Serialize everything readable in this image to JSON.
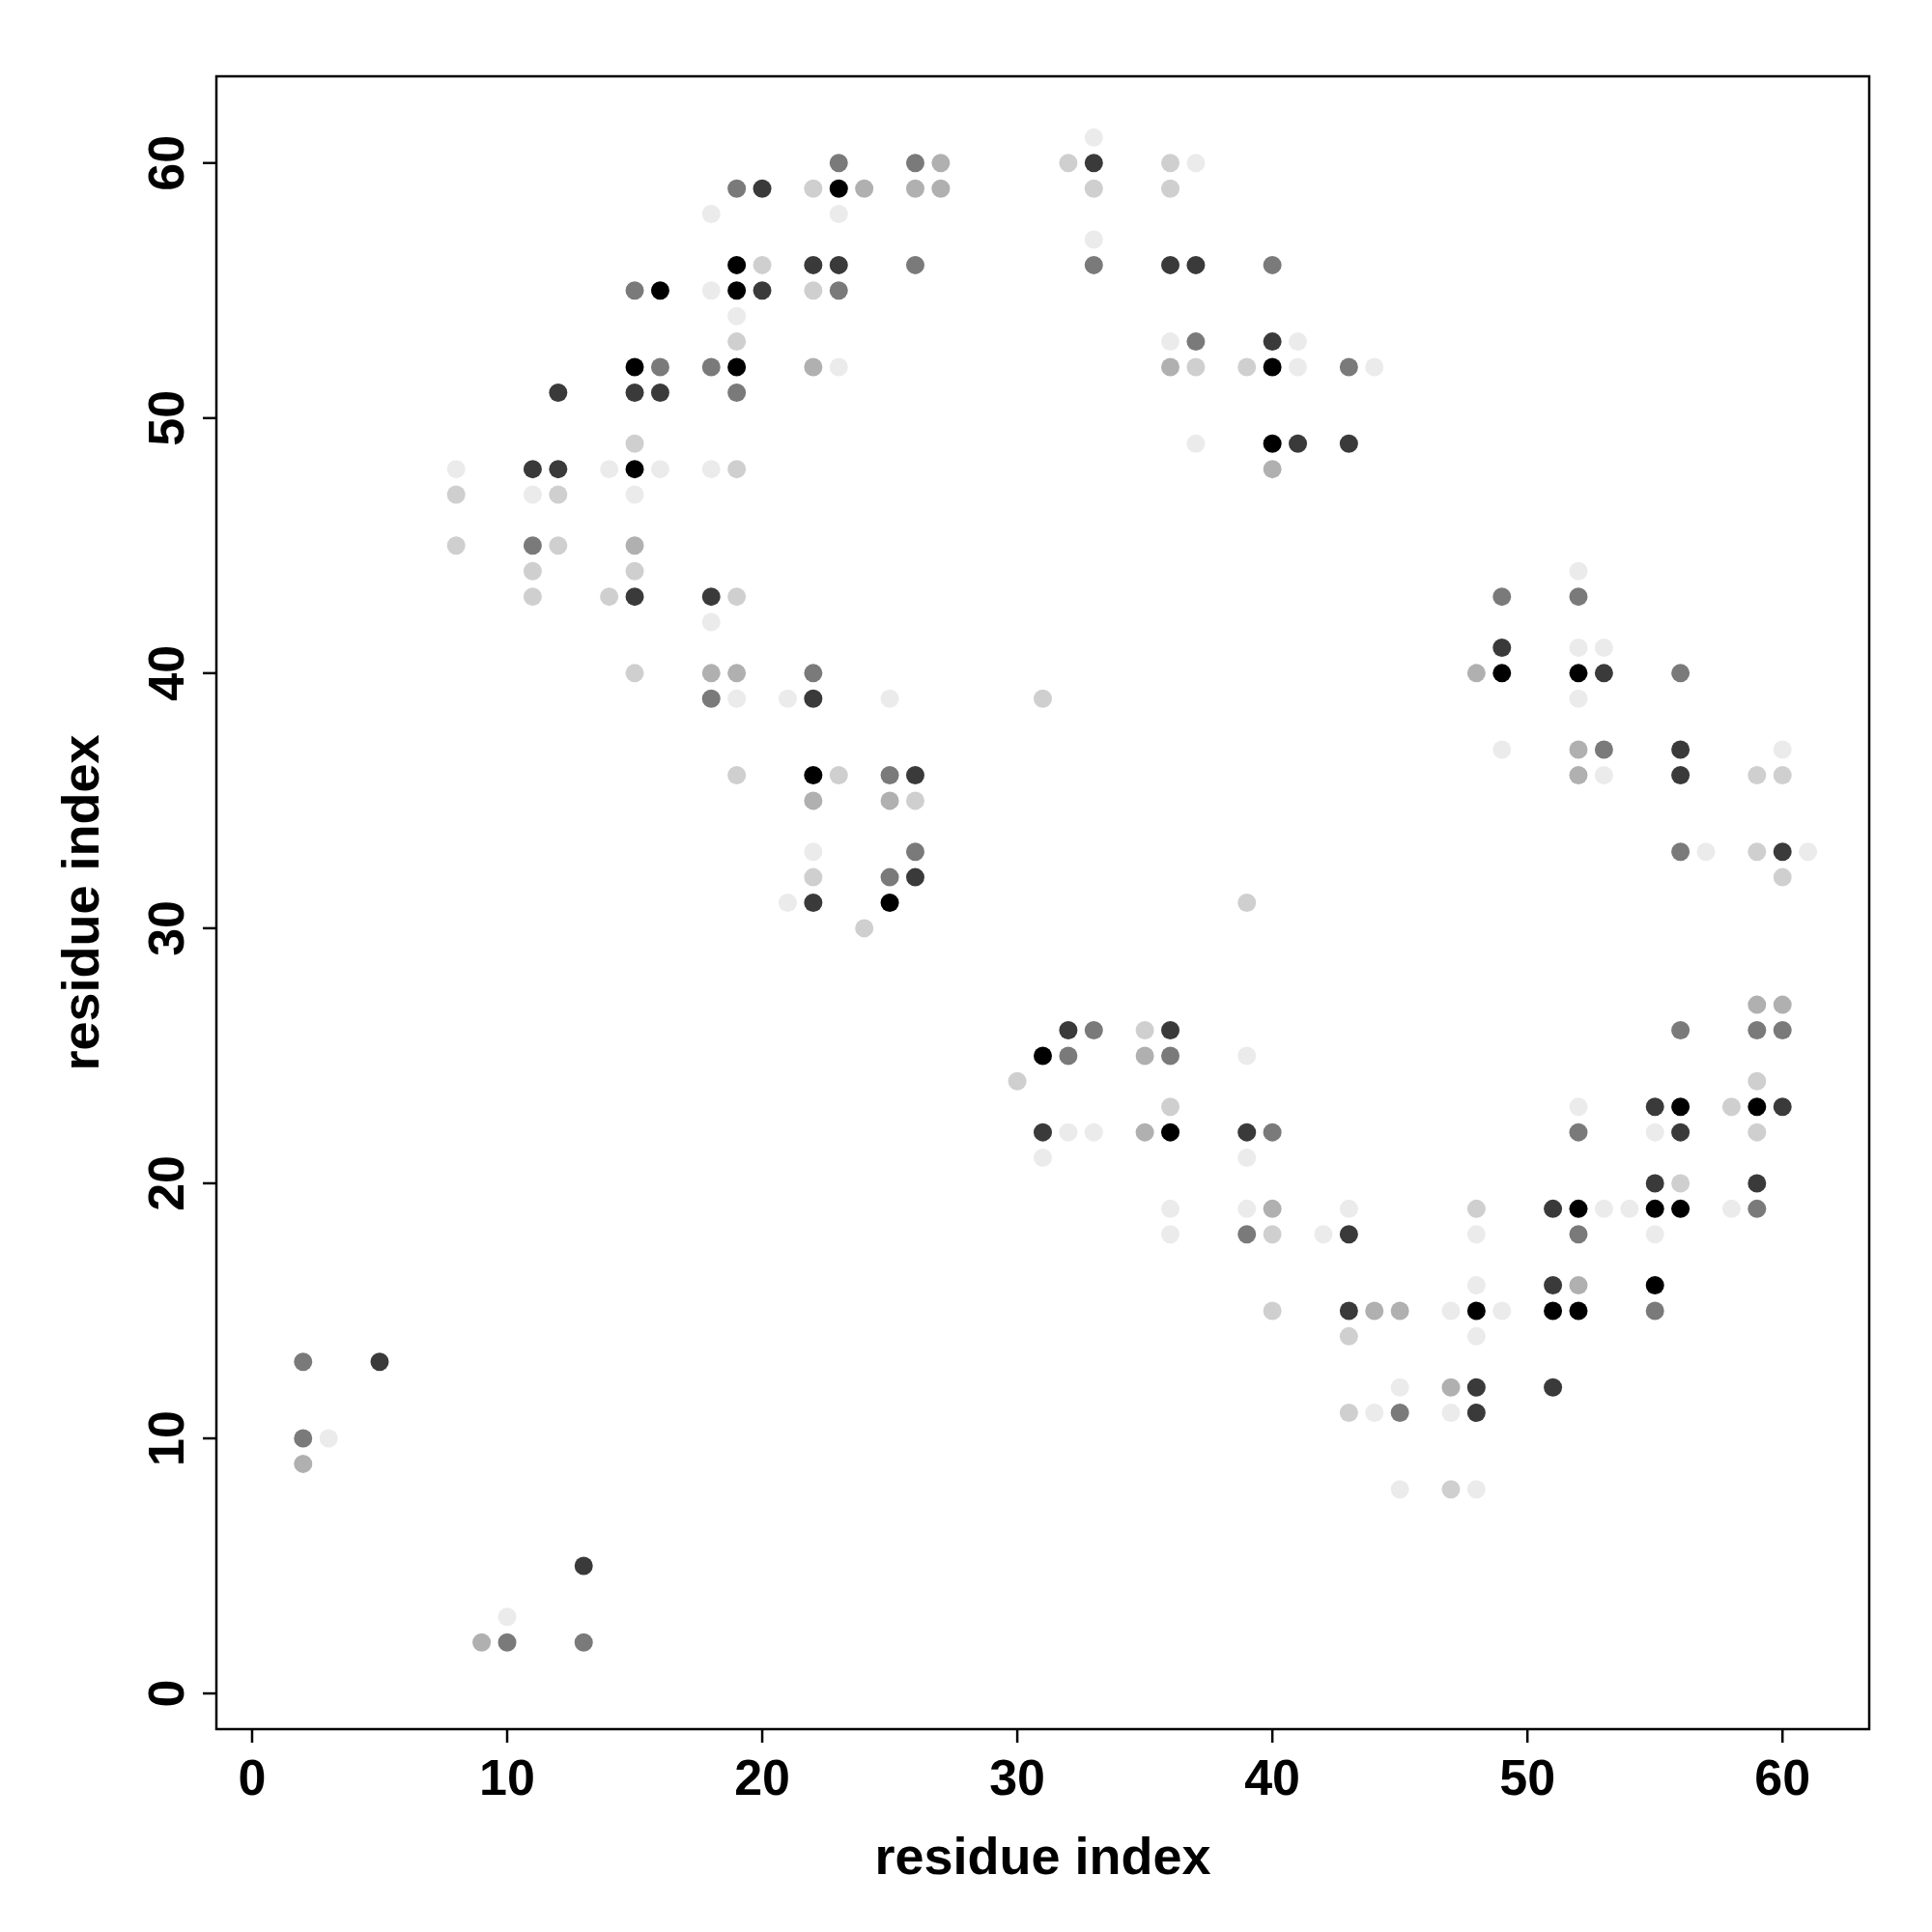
{
  "chart_data": {
    "type": "scatter",
    "xlabel": "residue index",
    "ylabel": "residue index",
    "xlim": [
      -1.4,
      63.4
    ],
    "ylim": [
      -1.4,
      63.4
    ],
    "xticks": [
      0,
      10,
      20,
      30,
      40,
      50,
      60
    ],
    "yticks": [
      0,
      10,
      20,
      30,
      40,
      50,
      60
    ],
    "marker": "circle",
    "series": [
      {
        "color": "#000000",
        "x": [
          15,
          15,
          19,
          16,
          19,
          19,
          22,
          25,
          23,
          40,
          40,
          49,
          52,
          31,
          36,
          48,
          52,
          51,
          52,
          56,
          55,
          56,
          55,
          59
        ],
        "values": [
          48,
          52,
          52,
          55,
          55,
          56,
          36,
          31,
          59,
          52,
          49,
          40,
          40,
          25,
          22,
          15,
          19,
          15,
          15,
          23,
          19,
          19,
          16,
          23
        ]
      },
      {
        "color": "#3a3a3a",
        "x": [
          5,
          13,
          12,
          11,
          12,
          15,
          16,
          15,
          20,
          20,
          18,
          22,
          22,
          26,
          26,
          22,
          23,
          33,
          36,
          37,
          40,
          41,
          43,
          49,
          53,
          56,
          56,
          60,
          32,
          36,
          31,
          39,
          43,
          43,
          48,
          48,
          51,
          51,
          51,
          55,
          56,
          55,
          60,
          59
        ],
        "values": [
          13,
          5,
          51,
          48,
          48,
          51,
          51,
          43,
          55,
          59,
          43,
          39,
          31,
          36,
          32,
          56,
          56,
          60,
          56,
          56,
          53,
          49,
          49,
          41,
          40,
          37,
          36,
          33,
          26,
          26,
          22,
          22,
          18,
          15,
          12,
          11,
          19,
          16,
          12,
          23,
          22,
          20,
          23,
          20
        ]
      },
      {
        "color": "#7a7a7a",
        "x": [
          2,
          2,
          10,
          13,
          11,
          16,
          15,
          18,
          19,
          19,
          18,
          22,
          25,
          26,
          25,
          23,
          23,
          26,
          26,
          33,
          37,
          40,
          43,
          49,
          52,
          53,
          56,
          56,
          33,
          32,
          36,
          40,
          39,
          45,
          52,
          52,
          55,
          56,
          59,
          60,
          59
        ],
        "values": [
          13,
          10,
          2,
          2,
          45,
          52,
          55,
          52,
          51,
          59,
          39,
          40,
          36,
          33,
          32,
          60,
          55,
          60,
          56,
          56,
          53,
          56,
          52,
          43,
          43,
          37,
          40,
          33,
          26,
          25,
          25,
          22,
          18,
          11,
          18,
          22,
          15,
          26,
          26,
          26,
          19
        ]
      },
      {
        "color": "#b0b0b0",
        "x": [
          2,
          9,
          15,
          18,
          19,
          22,
          25,
          22,
          24,
          27,
          26,
          27,
          36,
          40,
          48,
          52,
          52,
          35,
          35,
          40,
          44,
          45,
          47,
          52,
          59,
          60
        ],
        "values": [
          9,
          2,
          45,
          40,
          40,
          35,
          35,
          52,
          59,
          60,
          59,
          59,
          52,
          48,
          40,
          37,
          36,
          25,
          22,
          19,
          15,
          15,
          12,
          16,
          27,
          27
        ]
      },
      {
        "color": "#cfcfcf",
        "x": [
          8,
          8,
          12,
          12,
          11,
          11,
          15,
          15,
          14,
          15,
          20,
          19,
          19,
          19,
          19,
          23,
          22,
          26,
          22,
          24,
          22,
          32,
          33,
          36,
          36,
          37,
          39,
          31,
          39,
          59,
          60,
          59,
          60,
          30,
          35,
          36,
          40,
          40,
          43,
          43,
          48,
          47,
          56,
          58,
          59,
          59
        ],
        "values": [
          47,
          45,
          47,
          45,
          44,
          43,
          49,
          44,
          43,
          40,
          56,
          53,
          48,
          43,
          36,
          36,
          32,
          35,
          55,
          30,
          59,
          60,
          59,
          60,
          59,
          52,
          52,
          39,
          31,
          36,
          36,
          33,
          32,
          24,
          26,
          23,
          18,
          15,
          14,
          11,
          19,
          8,
          20,
          23,
          24,
          22
        ]
      },
      {
        "color": "#ebebeb",
        "x": [
          3,
          10,
          8,
          11,
          14,
          16,
          15,
          18,
          19,
          18,
          18,
          18,
          19,
          21,
          22,
          21,
          25,
          23,
          23,
          33,
          33,
          37,
          36,
          37,
          41,
          41,
          44,
          49,
          52,
          52,
          53,
          52,
          53,
          57,
          60,
          61,
          32,
          33,
          31,
          36,
          36,
          39,
          39,
          39,
          42,
          43,
          44,
          45,
          45,
          47,
          49,
          48,
          48,
          48,
          47,
          48,
          53,
          54,
          52,
          55,
          55,
          58
        ],
        "values": [
          10,
          3,
          48,
          47,
          48,
          48,
          47,
          55,
          54,
          58,
          48,
          42,
          39,
          39,
          33,
          31,
          39,
          58,
          52,
          61,
          57,
          60,
          53,
          49,
          53,
          52,
          52,
          37,
          44,
          41,
          41,
          39,
          36,
          33,
          37,
          33,
          22,
          22,
          21,
          19,
          18,
          25,
          21,
          19,
          18,
          19,
          11,
          12,
          8,
          15,
          15,
          16,
          14,
          18,
          11,
          8,
          19,
          19,
          23,
          22,
          18,
          19
        ]
      }
    ]
  }
}
